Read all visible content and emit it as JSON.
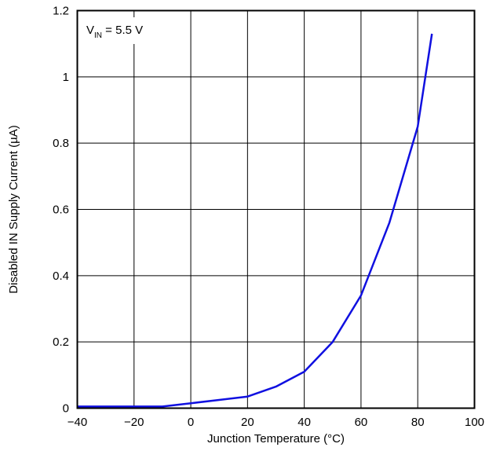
{
  "chart_data": {
    "type": "line",
    "title": "",
    "xlabel": "Junction Temperature (°C)",
    "ylabel": "Disabled IN Supply Current (µA)",
    "xlim": [
      -40,
      100
    ],
    "ylim": [
      0,
      1.2
    ],
    "x_ticks": [
      -40,
      -20,
      0,
      20,
      40,
      60,
      80,
      100
    ],
    "x_tick_labels": [
      "−40",
      "−20",
      "0",
      "20",
      "40",
      "60",
      "80",
      "100"
    ],
    "y_ticks": [
      0,
      0.2,
      0.4,
      0.6,
      0.8,
      1,
      1.2
    ],
    "y_tick_labels": [
      "0",
      "0.2",
      "0.4",
      "0.6",
      "0.8",
      "1",
      "1.2"
    ],
    "grid": true,
    "legend": "none",
    "annotation": {
      "main": "V",
      "sub": "IN",
      "rest": " = 5.5 V"
    },
    "series": [
      {
        "color": "#1010e0",
        "x": [
          -40,
          -30,
          -20,
          -10,
          0,
          10,
          20,
          30,
          40,
          50,
          60,
          70,
          80,
          85
        ],
        "y": [
          0.005,
          0.005,
          0.005,
          0.005,
          0.015,
          0.025,
          0.035,
          0.065,
          0.11,
          0.2,
          0.34,
          0.56,
          0.85,
          1.13
        ]
      }
    ]
  }
}
